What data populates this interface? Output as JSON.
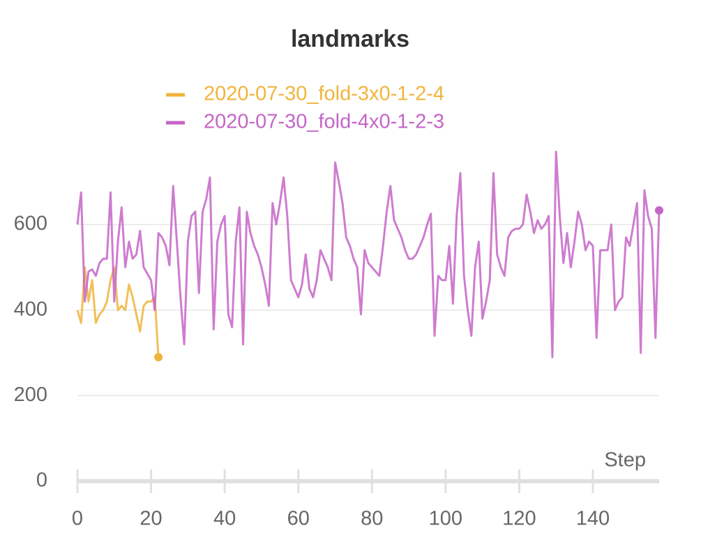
{
  "chart_data": {
    "type": "line",
    "title": "landmarks",
    "x_label": "Step",
    "xlim": [
      0,
      158
    ],
    "ylim": [
      0,
      780
    ],
    "xticks": [
      0,
      20,
      40,
      60,
      80,
      100,
      120,
      140
    ],
    "yticks": [
      0,
      200,
      400,
      600
    ],
    "grid": true,
    "legend": "top",
    "series": [
      {
        "name": "2020-07-30_fold-3x0-1-2-4",
        "color": "#f0b43c",
        "x": [
          0,
          1,
          2,
          3,
          4,
          5,
          6,
          7,
          8,
          9,
          10,
          11,
          12,
          13,
          14,
          15,
          16,
          17,
          18,
          19,
          20,
          21,
          22
        ],
        "values": [
          400,
          370,
          500,
          420,
          470,
          370,
          390,
          400,
          420,
          470,
          500,
          400,
          410,
          400,
          460,
          430,
          390,
          350,
          410,
          420,
          420,
          430,
          290
        ]
      },
      {
        "name": "2020-07-30_fold-4x0-1-2-3",
        "color": "#c565c7",
        "x": [
          0,
          1,
          2,
          3,
          4,
          5,
          6,
          7,
          8,
          9,
          10,
          11,
          12,
          13,
          14,
          15,
          16,
          17,
          18,
          19,
          20,
          21,
          22,
          23,
          24,
          25,
          26,
          27,
          28,
          29,
          30,
          31,
          32,
          33,
          34,
          35,
          36,
          37,
          38,
          39,
          40,
          41,
          42,
          43,
          44,
          45,
          46,
          47,
          48,
          49,
          50,
          51,
          52,
          53,
          54,
          55,
          56,
          57,
          58,
          59,
          60,
          61,
          62,
          63,
          64,
          65,
          66,
          67,
          68,
          69,
          70,
          71,
          72,
          73,
          74,
          75,
          76,
          77,
          78,
          79,
          80,
          81,
          82,
          83,
          84,
          85,
          86,
          87,
          88,
          89,
          90,
          91,
          92,
          93,
          94,
          95,
          96,
          97,
          98,
          99,
          100,
          101,
          102,
          103,
          104,
          105,
          106,
          107,
          108,
          109,
          110,
          111,
          112,
          113,
          114,
          115,
          116,
          117,
          118,
          119,
          120,
          121,
          122,
          123,
          124,
          125,
          126,
          127,
          128,
          129,
          130,
          131,
          132,
          133,
          134,
          135,
          136,
          137,
          138,
          139,
          140,
          141,
          142,
          143,
          144,
          145,
          146,
          147,
          148,
          149,
          150,
          151,
          152,
          153,
          154,
          155,
          156,
          157,
          158
        ],
        "values": [
          600,
          675,
          420,
          490,
          495,
          480,
          510,
          520,
          520,
          675,
          420,
          560,
          640,
          500,
          560,
          520,
          530,
          585,
          500,
          485,
          470,
          400,
          580,
          570,
          550,
          505,
          690,
          560,
          430,
          320,
          560,
          620,
          630,
          440,
          630,
          660,
          710,
          355,
          560,
          600,
          620,
          390,
          360,
          560,
          640,
          320,
          630,
          580,
          550,
          530,
          500,
          460,
          410,
          650,
          600,
          650,
          710,
          620,
          470,
          450,
          430,
          460,
          530,
          450,
          430,
          470,
          540,
          520,
          500,
          470,
          745,
          700,
          650,
          570,
          550,
          520,
          500,
          390,
          540,
          510,
          500,
          490,
          480,
          550,
          630,
          690,
          610,
          590,
          570,
          540,
          520,
          520,
          530,
          550,
          570,
          600,
          625,
          340,
          480,
          470,
          470,
          550,
          415,
          620,
          720,
          480,
          400,
          340,
          500,
          560,
          380,
          420,
          470,
          720,
          530,
          500,
          480,
          570,
          585,
          590,
          590,
          600,
          670,
          630,
          580,
          610,
          590,
          600,
          620,
          290,
          770,
          620,
          510,
          580,
          500,
          560,
          630,
          600,
          540,
          560,
          550,
          335,
          540,
          540,
          540,
          600,
          400,
          420,
          430,
          570,
          550,
          600,
          650,
          300,
          680,
          620,
          590,
          335,
          633
        ]
      }
    ]
  }
}
